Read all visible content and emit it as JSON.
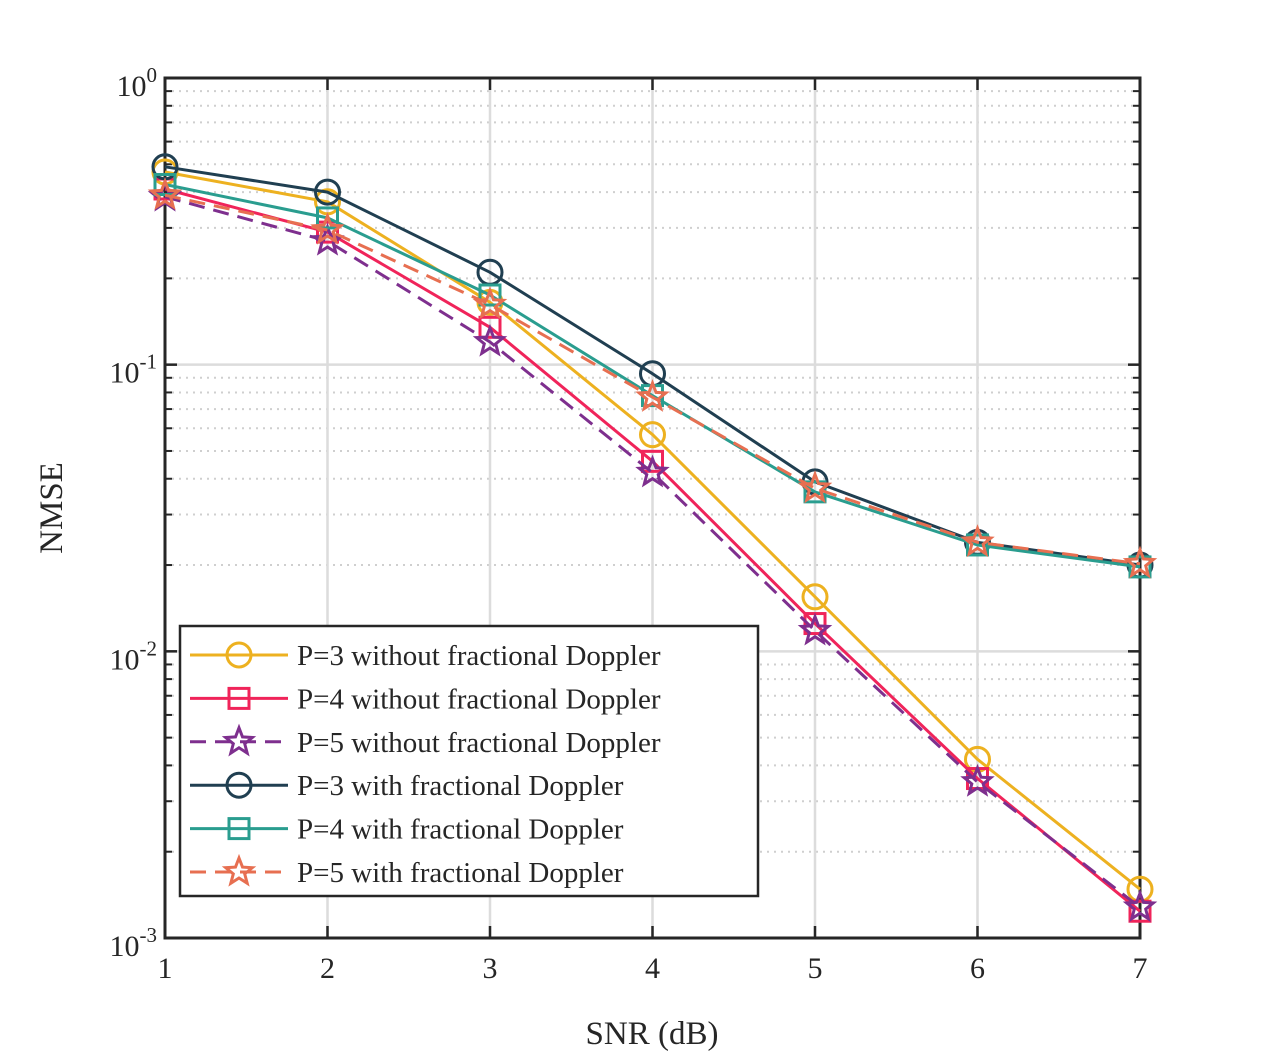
{
  "chart_data": {
    "type": "line",
    "title": "",
    "xlabel": "SNR (dB)",
    "ylabel": "NMSE",
    "xlim": [
      1,
      7
    ],
    "ylim": [
      0.001,
      1
    ],
    "yscale": "log",
    "grid": true,
    "legend_position": "bottom-left",
    "x": [
      1,
      2,
      3,
      4,
      5,
      6,
      7
    ],
    "x_tick_labels": [
      "1",
      "2",
      "3",
      "4",
      "5",
      "6",
      "7"
    ],
    "y_ticks": [
      {
        "value": 1,
        "base": "10",
        "exp": "0"
      },
      {
        "value": 0.1,
        "base": "10",
        "exp": "-1"
      },
      {
        "value": 0.01,
        "base": "10",
        "exp": "-2"
      },
      {
        "value": 0.001,
        "base": "10",
        "exp": "-3"
      }
    ],
    "series": [
      {
        "name": "P=3 without fractional Doppler",
        "color": "#EDB120",
        "marker": "circle",
        "dash": "solid",
        "values": [
          0.47,
          0.37,
          0.165,
          0.057,
          0.0155,
          0.0042,
          0.00148
        ]
      },
      {
        "name": "P=4 without fractional Doppler",
        "color": "#F0245A",
        "marker": "square",
        "dash": "solid",
        "values": [
          0.41,
          0.29,
          0.135,
          0.046,
          0.0125,
          0.0036,
          0.00124
        ]
      },
      {
        "name": "P=5 without fractional Doppler",
        "color": "#7E2F8E",
        "marker": "star",
        "dash": "dashed",
        "values": [
          0.385,
          0.27,
          0.12,
          0.042,
          0.0118,
          0.0035,
          0.00128
        ]
      },
      {
        "name": "P=3 with fractional Doppler",
        "color": "#203F51",
        "marker": "circle",
        "dash": "solid",
        "values": [
          0.49,
          0.4,
          0.21,
          0.093,
          0.039,
          0.024,
          0.02
        ]
      },
      {
        "name": "P=4 with fractional Doppler",
        "color": "#2A9D8F",
        "marker": "square",
        "dash": "solid",
        "values": [
          0.425,
          0.325,
          0.175,
          0.078,
          0.036,
          0.0235,
          0.0197
        ]
      },
      {
        "name": "P=5 with fractional Doppler",
        "color": "#E76F51",
        "marker": "star",
        "dash": "dashed",
        "values": [
          0.39,
          0.295,
          0.162,
          0.077,
          0.037,
          0.024,
          0.0202
        ]
      }
    ]
  }
}
